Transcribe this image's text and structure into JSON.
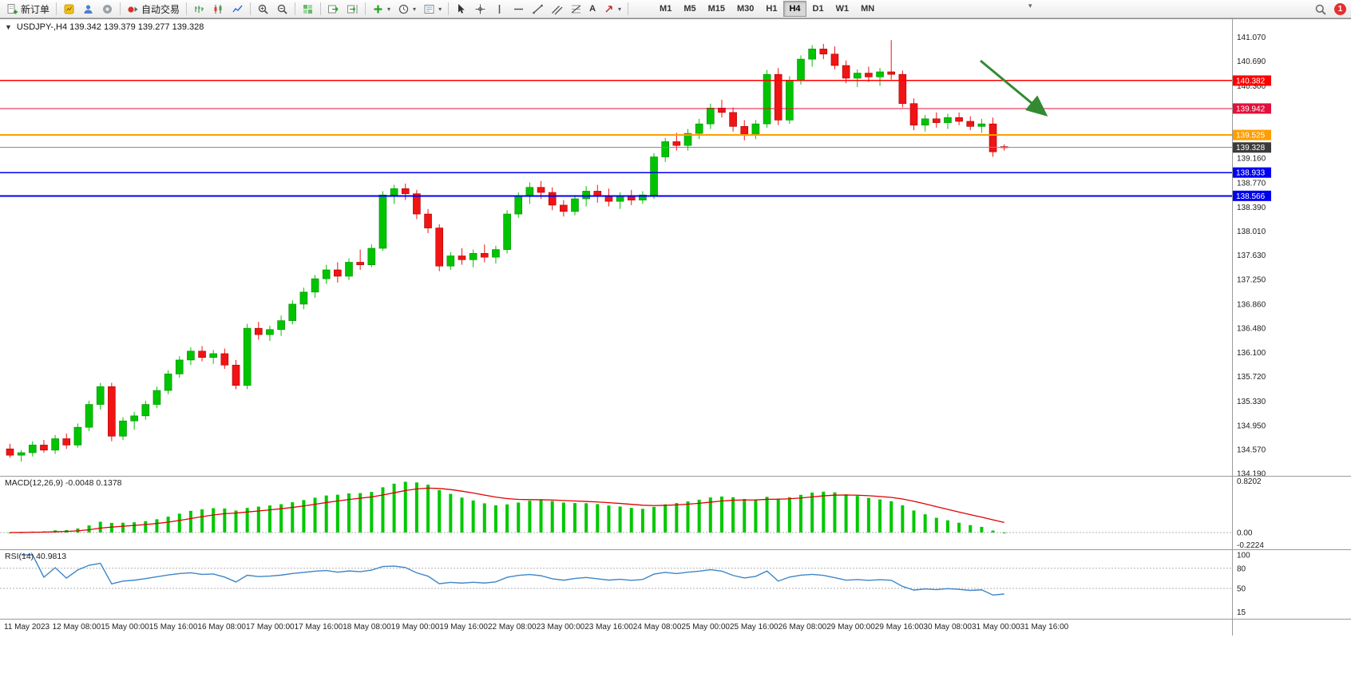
{
  "toolbar": {
    "new_order": "新订单",
    "auto_trading": "自动交易",
    "timeframes": [
      "M1",
      "M5",
      "M15",
      "M30",
      "H1",
      "H4",
      "D1",
      "W1",
      "MN"
    ],
    "active_timeframe": "H4",
    "notification_count": "1"
  },
  "icons": {
    "symbol_dropdown": "▼",
    "dropdown_caret": "▾",
    "text_tool": "A",
    "overflow": "▾"
  },
  "chart": {
    "symbol_info": "USDJPY-,H4  139.342 139.379 139.277 139.328",
    "colors": {
      "up": "#00C400",
      "up_border": "#008A00",
      "down": "#F01414",
      "down_border": "#A80000"
    },
    "y_axis_labels": [
      "141.070",
      "140.690",
      "140.300",
      "139.160",
      "138.770",
      "138.390",
      "138.010",
      "137.630",
      "137.250",
      "136.860",
      "136.480",
      "136.100",
      "135.720",
      "135.330",
      "134.950",
      "134.570",
      "134.190"
    ],
    "levels": [
      {
        "price": 140.382,
        "label": "140.382",
        "color": "#FF0000",
        "width": 1.5
      },
      {
        "price": 139.942,
        "label": "139.942",
        "color": "#E2103C",
        "width": 1.2
      },
      {
        "price": 139.525,
        "label": "139.525",
        "color": "#FF9E00",
        "width": 2
      },
      {
        "price": 139.328,
        "label": "139.328",
        "color": "#8a8a8a",
        "width": 1,
        "tag_color": "#3b3b3b"
      },
      {
        "price": 138.933,
        "label": "138.933",
        "color": "#0000F0",
        "width": 1.5
      },
      {
        "price": 138.566,
        "label": "138.566",
        "color": "#0000F0",
        "width": 2
      }
    ],
    "arrow": {
      "color": "#338A33",
      "from": [
        1228,
        52
      ],
      "to": [
        1310,
        120
      ]
    }
  },
  "macd": {
    "label": "MACD(12,26,9) -0.0048 0.1378",
    "params": [
      12,
      26,
      9
    ],
    "axis_labels": [
      "0.8202",
      "0.00",
      "-0.2224"
    ],
    "colors": {
      "histogram": "#00C800",
      "signal": "#E00000"
    }
  },
  "rsi": {
    "label": "RSI(14) 40.9813",
    "period": 14,
    "value": 40.9813,
    "axis_labels": [
      "100",
      "80",
      "50",
      "15"
    ],
    "levels": [
      80,
      50
    ],
    "color": "#3E86C8"
  },
  "time_axis": [
    "11 May 2023",
    "12 May 08:00",
    "15 May 00:00",
    "15 May 16:00",
    "16 May 08:00",
    "17 May 00:00",
    "17 May 16:00",
    "18 May 08:00",
    "19 May 00:00",
    "19 May 16:00",
    "22 May 08:00",
    "23 May 00:00",
    "23 May 16:00",
    "24 May 08:00",
    "25 May 00:00",
    "25 May 16:00",
    "26 May 08:00",
    "29 May 00:00",
    "29 May 16:00",
    "30 May 08:00",
    "31 May 00:00",
    "31 May 16:00"
  ],
  "chart_data": {
    "type": "candlestick",
    "title": "USDJPY-,H4",
    "symbol": "USDJPY-",
    "timeframe": "H4",
    "current_ohlc": {
      "open": "139.342",
      "high": "139.379",
      "low": "139.277",
      "close": "139.328"
    },
    "y_range": [
      134.19,
      141.07
    ],
    "horizontal_levels": [
      140.382,
      139.942,
      139.525,
      139.328,
      138.933,
      138.566
    ],
    "indicators": [
      {
        "name": "MACD",
        "params": [
          12,
          26,
          9
        ],
        "current": [
          -0.0048,
          0.1378
        ],
        "scale_max": 0.8202,
        "scale_min": -0.2224
      },
      {
        "name": "RSI",
        "params": [
          14
        ],
        "current": 40.9813
      }
    ],
    "candles": [
      [
        134.58,
        134.66,
        134.44,
        134.48
      ],
      [
        134.48,
        134.56,
        134.38,
        134.52
      ],
      [
        134.52,
        134.7,
        134.46,
        134.64
      ],
      [
        134.64,
        134.72,
        134.52,
        134.56
      ],
      [
        134.56,
        134.8,
        134.5,
        134.74
      ],
      [
        134.74,
        134.82,
        134.58,
        134.64
      ],
      [
        134.64,
        134.98,
        134.6,
        134.92
      ],
      [
        134.92,
        135.34,
        134.86,
        135.28
      ],
      [
        135.28,
        135.62,
        135.2,
        135.56
      ],
      [
        135.56,
        135.62,
        134.7,
        134.78
      ],
      [
        134.78,
        135.08,
        134.72,
        135.02
      ],
      [
        135.02,
        135.16,
        134.88,
        135.1
      ],
      [
        135.1,
        135.34,
        135.04,
        135.28
      ],
      [
        135.28,
        135.56,
        135.22,
        135.5
      ],
      [
        135.5,
        135.82,
        135.44,
        135.76
      ],
      [
        135.76,
        136.04,
        135.7,
        135.98
      ],
      [
        135.98,
        136.18,
        135.9,
        136.12
      ],
      [
        136.12,
        136.2,
        135.96,
        136.02
      ],
      [
        136.02,
        136.14,
        135.92,
        136.08
      ],
      [
        136.08,
        136.16,
        135.84,
        135.9
      ],
      [
        135.9,
        135.98,
        135.52,
        135.58
      ],
      [
        135.58,
        136.55,
        135.52,
        136.48
      ],
      [
        136.48,
        136.58,
        136.3,
        136.38
      ],
      [
        136.38,
        136.52,
        136.28,
        136.46
      ],
      [
        136.46,
        136.68,
        136.36,
        136.6
      ],
      [
        136.6,
        136.92,
        136.54,
        136.86
      ],
      [
        136.86,
        137.12,
        136.78,
        137.05
      ],
      [
        137.05,
        137.32,
        136.96,
        137.26
      ],
      [
        137.26,
        137.48,
        137.18,
        137.4
      ],
      [
        137.4,
        137.52,
        137.2,
        137.3
      ],
      [
        137.3,
        137.58,
        137.24,
        137.52
      ],
      [
        137.52,
        137.72,
        137.4,
        137.48
      ],
      [
        137.48,
        137.8,
        137.44,
        137.74
      ],
      [
        137.74,
        138.64,
        137.7,
        138.58
      ],
      [
        138.58,
        138.74,
        138.44,
        138.68
      ],
      [
        138.68,
        138.76,
        138.5,
        138.6
      ],
      [
        138.6,
        138.66,
        138.2,
        138.28
      ],
      [
        138.28,
        138.36,
        137.98,
        138.06
      ],
      [
        138.06,
        138.12,
        137.38,
        137.46
      ],
      [
        137.46,
        137.68,
        137.4,
        137.62
      ],
      [
        137.62,
        137.74,
        137.48,
        137.56
      ],
      [
        137.56,
        137.72,
        137.44,
        137.66
      ],
      [
        137.66,
        137.8,
        137.52,
        137.6
      ],
      [
        137.6,
        137.78,
        137.5,
        137.72
      ],
      [
        137.72,
        138.34,
        137.66,
        138.28
      ],
      [
        138.28,
        138.62,
        138.22,
        138.56
      ],
      [
        138.56,
        138.78,
        138.44,
        138.7
      ],
      [
        138.7,
        138.8,
        138.52,
        138.62
      ],
      [
        138.62,
        138.7,
        138.34,
        138.42
      ],
      [
        138.42,
        138.5,
        138.24,
        138.32
      ],
      [
        138.32,
        138.58,
        138.26,
        138.52
      ],
      [
        138.52,
        138.72,
        138.4,
        138.64
      ],
      [
        138.64,
        138.74,
        138.46,
        138.56
      ],
      [
        138.56,
        138.68,
        138.4,
        138.48
      ],
      [
        138.48,
        138.62,
        138.36,
        138.56
      ],
      [
        138.56,
        138.66,
        138.42,
        138.5
      ],
      [
        138.5,
        138.64,
        138.44,
        138.58
      ],
      [
        138.58,
        139.24,
        138.52,
        139.18
      ],
      [
        139.18,
        139.48,
        139.1,
        139.42
      ],
      [
        139.42,
        139.56,
        139.28,
        139.36
      ],
      [
        139.36,
        139.62,
        139.28,
        139.55
      ],
      [
        139.55,
        139.78,
        139.46,
        139.7
      ],
      [
        139.7,
        140.02,
        139.62,
        139.95
      ],
      [
        139.95,
        140.08,
        139.8,
        139.88
      ],
      [
        139.88,
        139.96,
        139.58,
        139.66
      ],
      [
        139.66,
        139.76,
        139.44,
        139.52
      ],
      [
        139.52,
        139.76,
        139.46,
        139.7
      ],
      [
        139.7,
        140.55,
        139.64,
        140.48
      ],
      [
        140.48,
        140.58,
        139.68,
        139.76
      ],
      [
        139.76,
        140.45,
        139.7,
        140.38
      ],
      [
        140.38,
        140.78,
        140.32,
        140.72
      ],
      [
        140.72,
        140.94,
        140.6,
        140.88
      ],
      [
        140.88,
        140.96,
        140.72,
        140.8
      ],
      [
        140.8,
        140.92,
        140.56,
        140.62
      ],
      [
        140.62,
        140.7,
        140.34,
        140.42
      ],
      [
        140.42,
        140.56,
        140.28,
        140.5
      ],
      [
        140.5,
        140.6,
        140.36,
        140.44
      ],
      [
        140.44,
        140.58,
        140.3,
        140.52
      ],
      [
        140.52,
        141.02,
        140.4,
        140.48
      ],
      [
        140.48,
        140.54,
        139.96,
        140.02
      ],
      [
        140.02,
        140.1,
        139.6,
        139.68
      ],
      [
        139.68,
        139.84,
        139.58,
        139.78
      ],
      [
        139.78,
        139.88,
        139.64,
        139.72
      ],
      [
        139.72,
        139.86,
        139.62,
        139.8
      ],
      [
        139.8,
        139.88,
        139.68,
        139.74
      ],
      [
        139.74,
        139.82,
        139.6,
        139.66
      ],
      [
        139.66,
        139.78,
        139.56,
        139.7
      ],
      [
        139.7,
        139.8,
        139.18,
        139.26
      ],
      [
        139.342,
        139.379,
        139.277,
        139.328
      ]
    ]
  }
}
